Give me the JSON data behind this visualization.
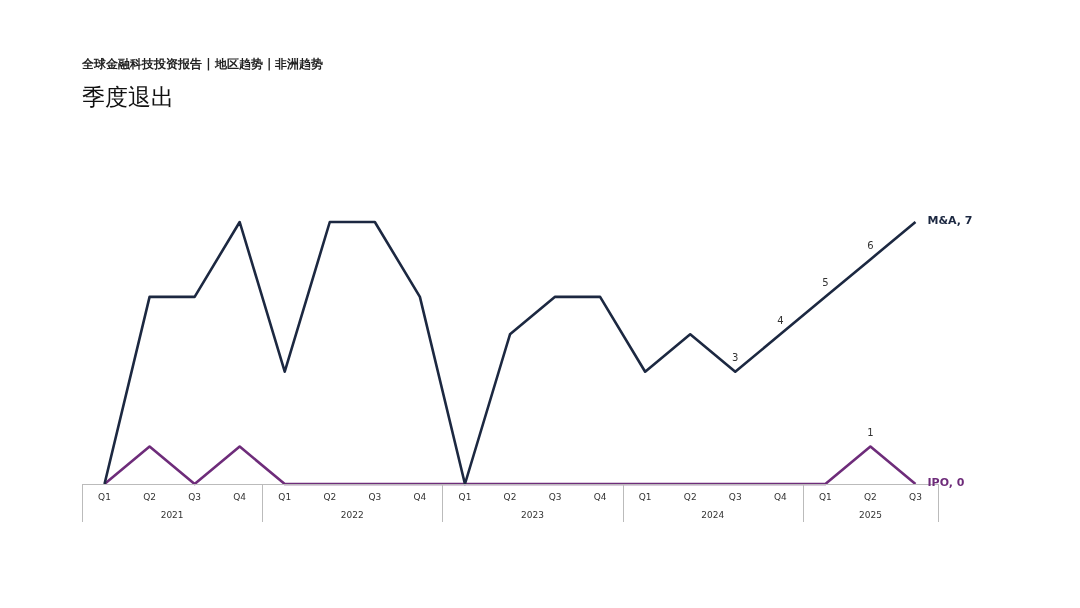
{
  "chart_data": {
    "type": "line",
    "title": "季度退出",
    "subtitle": "全球金融科技投资报告 | 地区趋势 | 非洲趋势",
    "categories": [
      "Q1",
      "Q2",
      "Q3",
      "Q4",
      "Q1",
      "Q2",
      "Q3",
      "Q4",
      "Q1",
      "Q2",
      "Q3",
      "Q4",
      "Q1",
      "Q2",
      "Q3",
      "Q4",
      "Q1",
      "Q2",
      "Q3"
    ],
    "annotations": [
      "2021",
      "2022",
      "2023",
      "2024",
      "2025"
    ],
    "series": [
      {
        "color": "#1c2841",
        "values": [
          0,
          5,
          5,
          7,
          3,
          7,
          7,
          5,
          0,
          4,
          5,
          5,
          3,
          4,
          3,
          4,
          5,
          6,
          7
        ],
        "value_labels": [
          null,
          null,
          null,
          null,
          null,
          null,
          null,
          null,
          null,
          null,
          null,
          null,
          null,
          null,
          "3",
          "4",
          "5",
          "6",
          "M&A, 7"
        ]
      },
      {
        "color": "#6e2c7a",
        "values": [
          0,
          1,
          0,
          1,
          0,
          0,
          0,
          0,
          0,
          0,
          0,
          0,
          0,
          0,
          0,
          0,
          0,
          1,
          0
        ],
        "value_labels": [
          null,
          null,
          null,
          null,
          null,
          null,
          null,
          null,
          null,
          null,
          null,
          null,
          null,
          null,
          null,
          null,
          null,
          "1",
          "IPO, 0"
        ]
      }
    ],
    "tick_labels": "x",
    "grid": false,
    "legend": false,
    "marker": "none",
    "line_style": "solid"
  }
}
